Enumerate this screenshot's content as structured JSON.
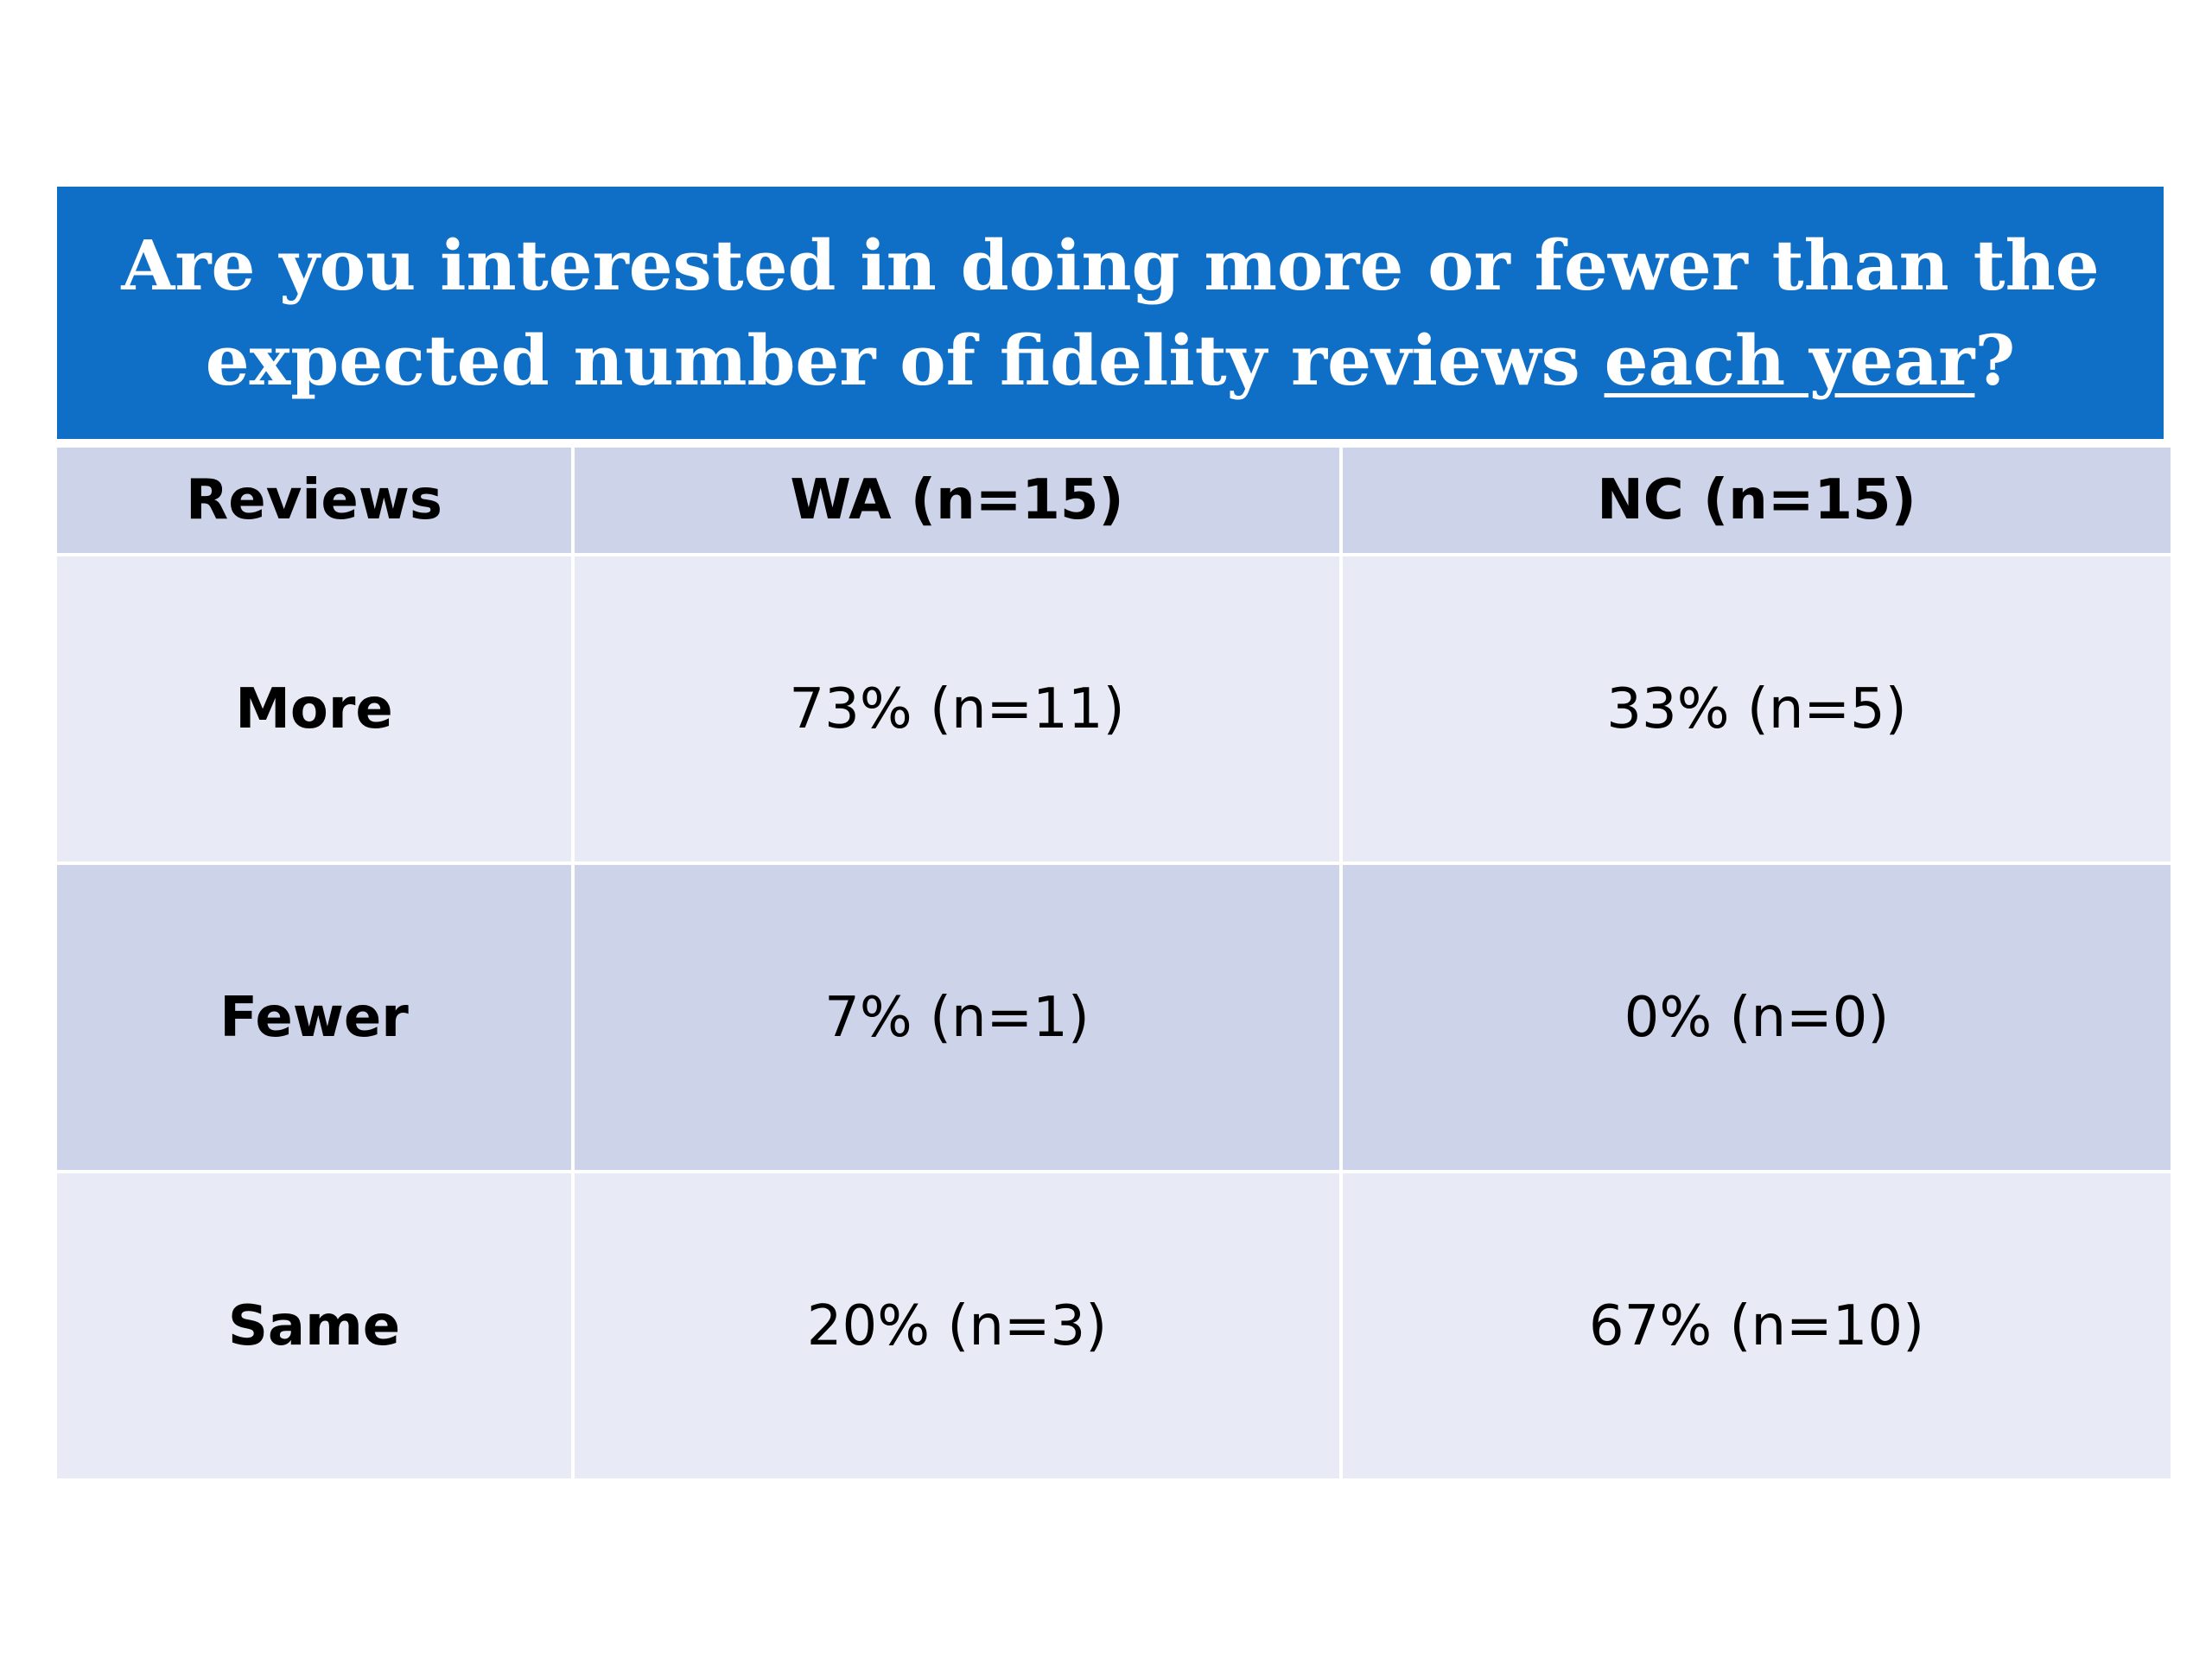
{
  "title": {
    "line1": "Are you interested in doing more or fewer than the",
    "line2_prefix": "expected number of fidelity reviews ",
    "line2_emphasis": "each year",
    "line2_suffix": "?"
  },
  "table": {
    "headers": [
      "Reviews",
      "WA (n=15)",
      "NC (n=15)"
    ],
    "rows": [
      {
        "label": "More",
        "wa": "73% (n=11)",
        "nc": "33% (n=5)"
      },
      {
        "label": "Fewer",
        "wa": "7% (n=1)",
        "nc": "0% (n=0)"
      },
      {
        "label": "Same",
        "wa": "20% (n=3)",
        "nc": "67% (n=10)"
      }
    ]
  },
  "colors": {
    "banner": "#0f6fc6",
    "header_row": "#cdd4ea",
    "row_light": "#e8ebf5",
    "row_dark": "#cdd4ea"
  }
}
